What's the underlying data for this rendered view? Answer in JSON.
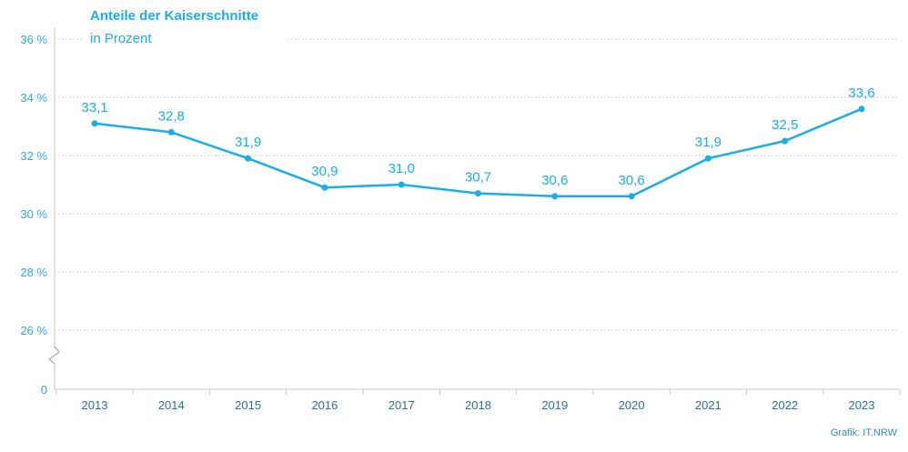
{
  "chart_data": {
    "type": "line",
    "title": "Anteile der Kaiserschnitte",
    "subtitle": "in Prozent",
    "categories": [
      "2013",
      "2014",
      "2015",
      "2016",
      "2017",
      "2018",
      "2019",
      "2020",
      "2021",
      "2022",
      "2023"
    ],
    "series": [
      {
        "values": [
          33.1,
          32.8,
          31.9,
          30.9,
          31.0,
          30.7,
          30.6,
          30.6,
          31.9,
          32.5,
          33.6
        ]
      }
    ],
    "data_labels": [
      "33,1",
      "32,8",
      "31,9",
      "30,9",
      "31,0",
      "30,7",
      "30,6",
      "30,6",
      "31,9",
      "32,5",
      "33,6"
    ],
    "y_ticks": [
      {
        "value": 36,
        "label": "36 %"
      },
      {
        "value": 34,
        "label": "34 %"
      },
      {
        "value": 32,
        "label": "32 %"
      },
      {
        "value": 30,
        "label": "30 %"
      },
      {
        "value": 28,
        "label": "28 %"
      },
      {
        "value": 26,
        "label": "26 %"
      }
    ],
    "y_zero_label": "0",
    "ylim": [
      26,
      36
    ],
    "axis_break": true,
    "grid": true,
    "line_color": "#1aaee5",
    "grid_color": "#cfcfcf"
  },
  "credit": "Grafik: IT.NRW"
}
